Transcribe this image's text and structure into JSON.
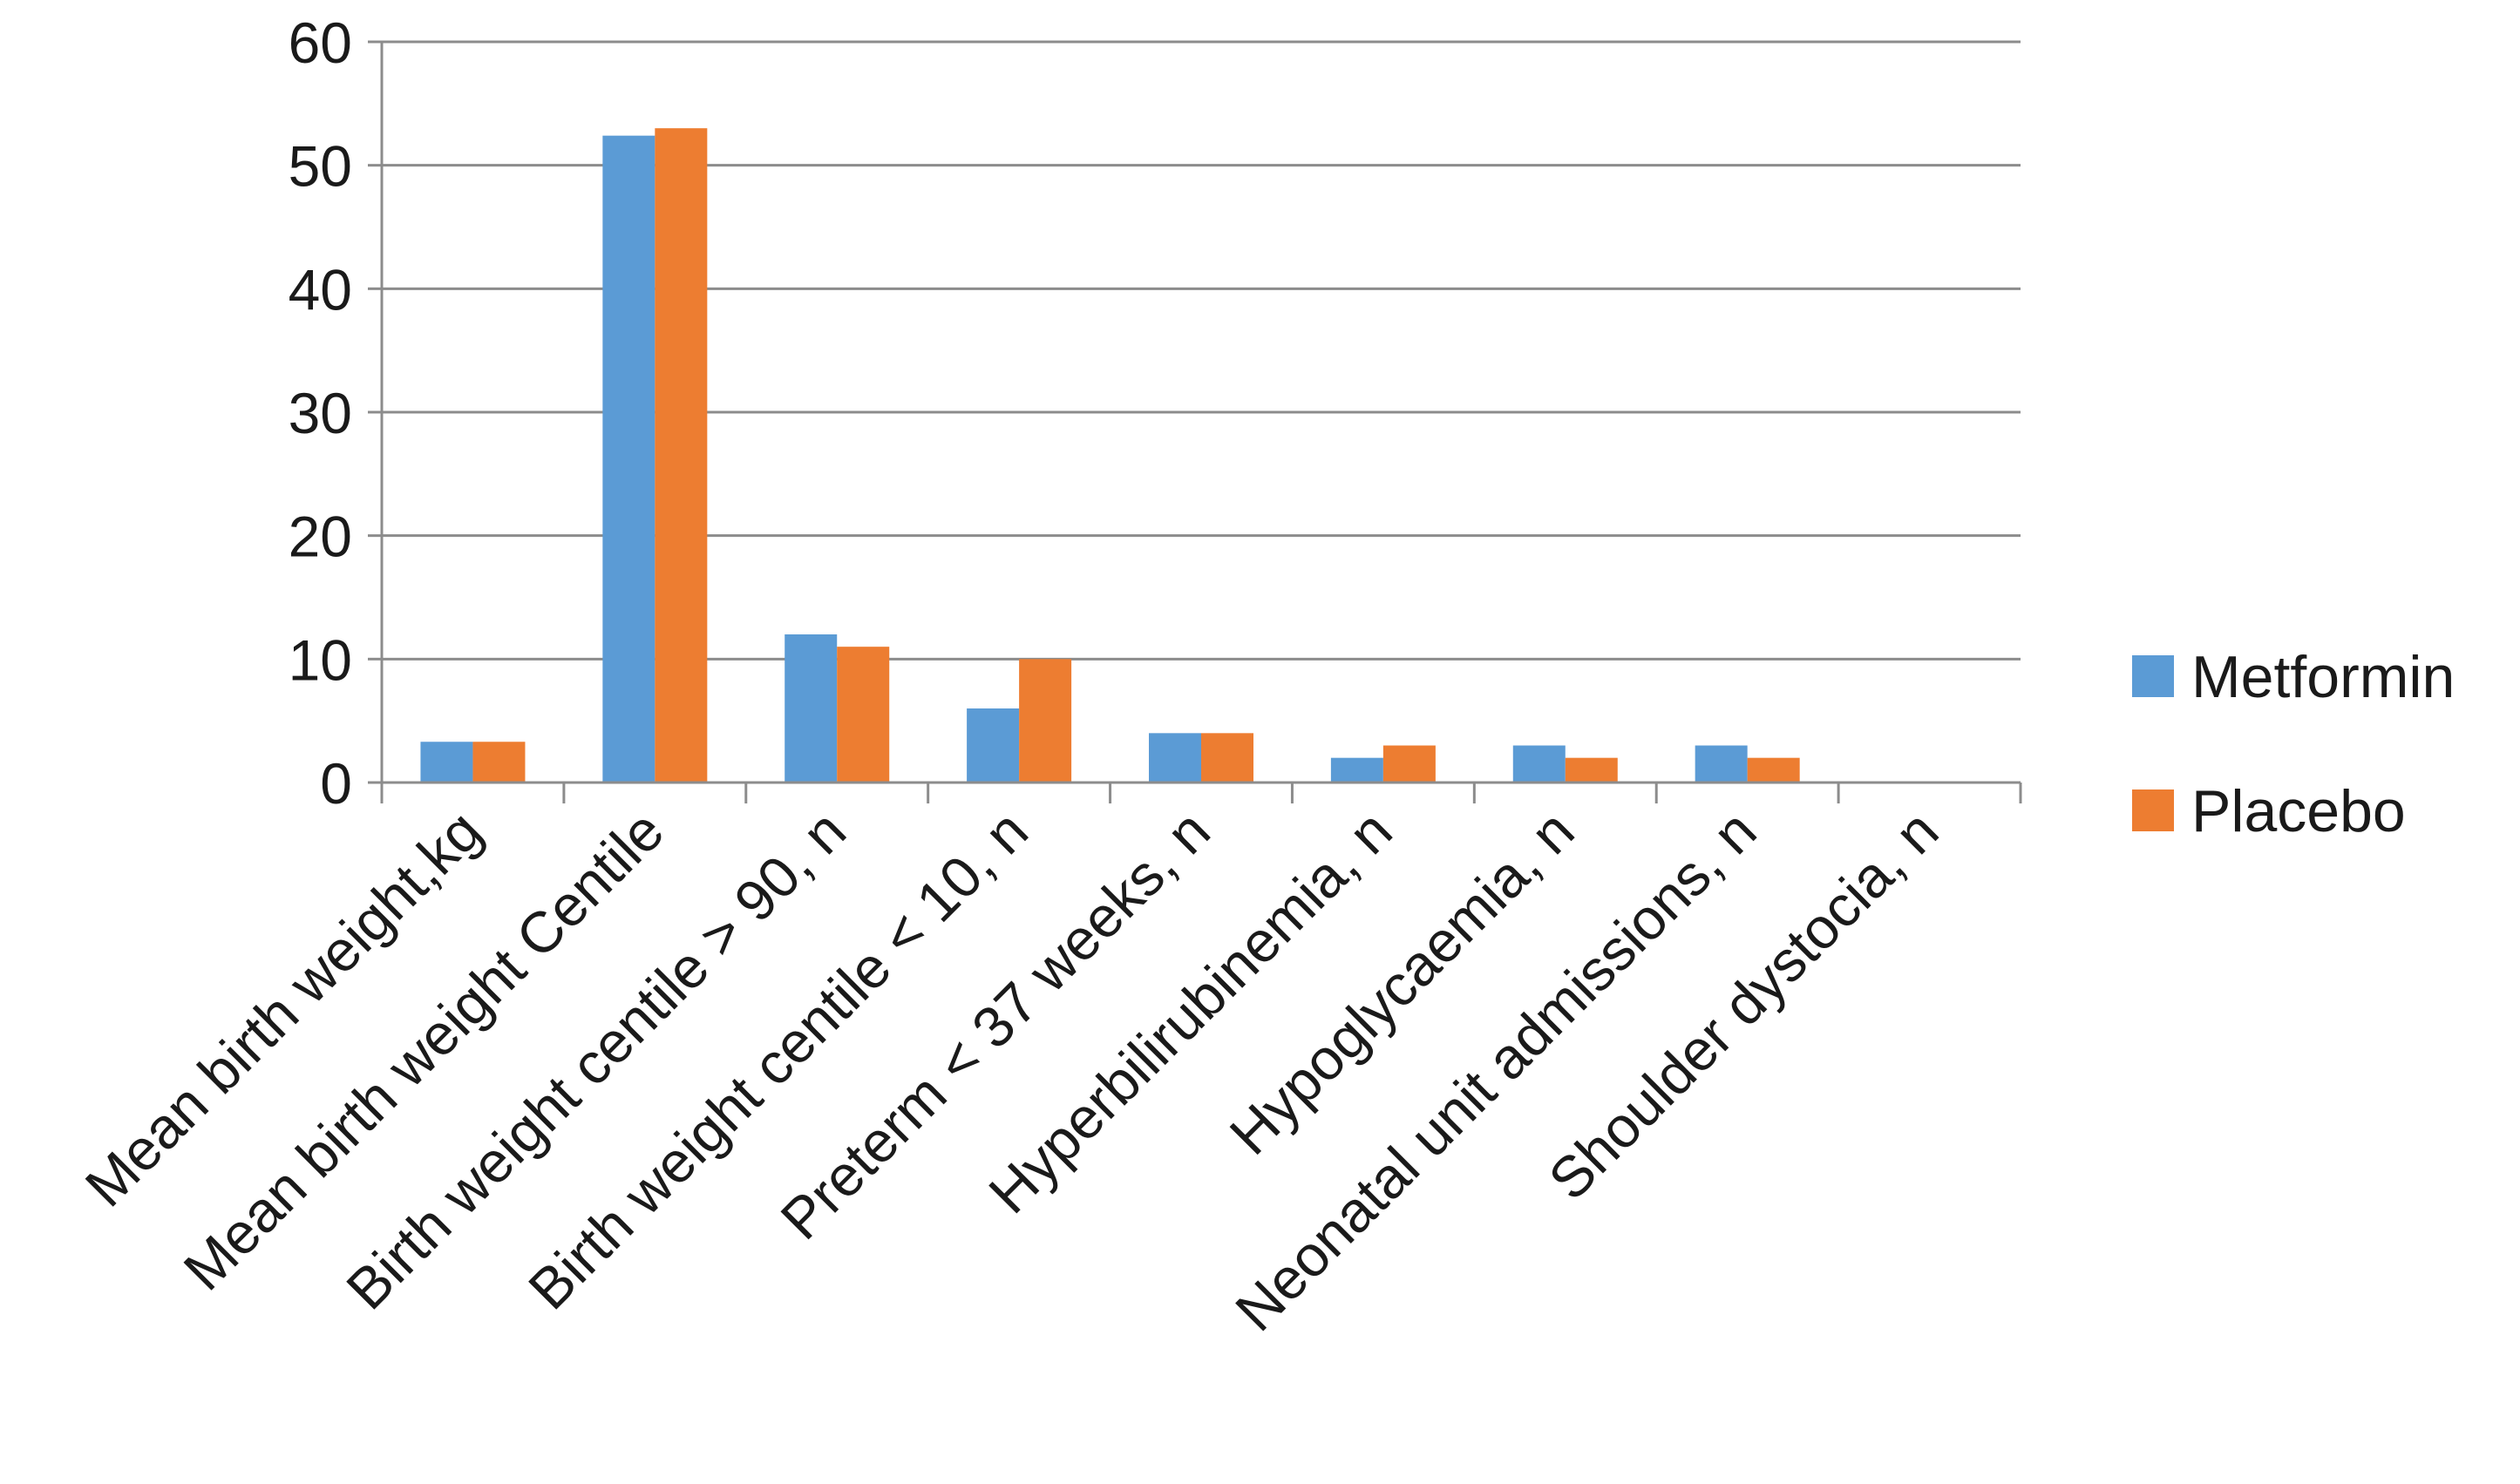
{
  "chart_data": {
    "type": "bar",
    "categories": [
      "Mean birth weight,kg",
      "Mean birth weight Centile",
      "Birth weight centile > 90, n",
      "Birth weight centile < 10, n",
      "Preterm < 37 weeks, n",
      "Hyperbilirubinemia, n",
      "Hypoglycaemia, n",
      "Neonatal unit admissions, n",
      "Shoulder dystocia, n"
    ],
    "series": [
      {
        "name": "Metformin",
        "color": "#5B9BD5",
        "values": [
          3.3,
          52.4,
          12,
          6,
          4,
          2,
          3,
          3,
          0
        ]
      },
      {
        "name": "Placebo",
        "color": "#ED7D31",
        "values": [
          3.3,
          53,
          11,
          10,
          4,
          3,
          2,
          2,
          0
        ]
      }
    ],
    "yticks": [
      "0",
      "10",
      "20",
      "30",
      "40",
      "50",
      "60"
    ],
    "ylim": [
      0,
      60
    ],
    "grid": true,
    "legend_position": "right",
    "title": "",
    "xlabel": "",
    "ylabel": ""
  }
}
